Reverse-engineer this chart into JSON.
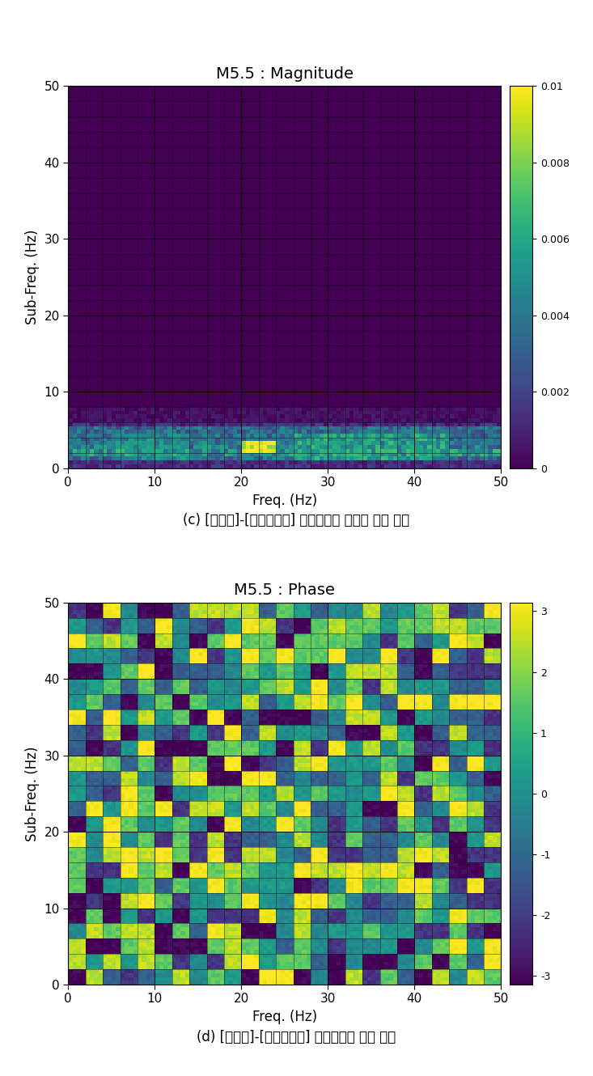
{
  "title1": "M5.5 : Magnitude",
  "title2": "M5.5 : Phase",
  "xlabel": "Freq. (Hz)",
  "ylabel": "Sub-Freq. (Hz)",
  "xlim": [
    0,
    50
  ],
  "ylim": [
    0,
    50
  ],
  "xticks": [
    0,
    10,
    20,
    30,
    40,
    50
  ],
  "yticks": [
    0,
    10,
    20,
    30,
    40,
    50
  ],
  "mag_vmin": 0,
  "mag_vmax": 0.01,
  "phase_vmin": -3.14159,
  "phase_vmax": 3.14159,
  "mag_cbar_ticks": [
    0,
    0.002,
    0.004,
    0.006,
    0.008,
    0.01
  ],
  "mag_cbar_labels": [
    "0",
    "0.002",
    "0.004",
    "0.006",
    "0.008",
    "0.01"
  ],
  "phase_cbar_ticks": [
    -3,
    -2,
    -1,
    0,
    1,
    2,
    3
  ],
  "phase_cbar_labels": [
    "-3",
    "-2",
    "-1",
    "0",
    "1",
    "2",
    "3"
  ],
  "caption1": "(c) [주파수]-[서브주파수] 영역에서의 에너지 크기 지도",
  "caption2": "(d) [주파수]-[서브주파수] 영역에서의 위상 지도",
  "n_freq": 100,
  "n_subfreq": 100,
  "background_color": "#ffffff",
  "title_fontsize": 14,
  "label_fontsize": 12,
  "caption_fontsize": 12,
  "tick_fontsize": 11
}
